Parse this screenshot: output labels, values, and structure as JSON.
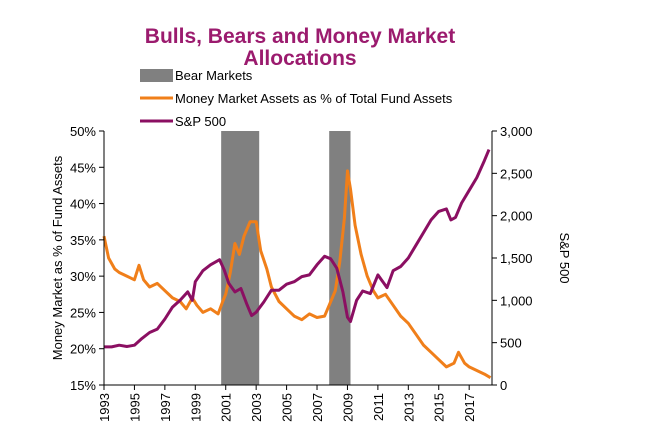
{
  "chart_data": {
    "type": "line",
    "title": "Bulls, Bears and Money Market Allocations",
    "colors": {
      "title": "#9b1b6e",
      "bear": "#808080",
      "money_market": "#f07f1a",
      "sp500": "#8b0f62"
    },
    "legend": {
      "placement": "top",
      "entries": [
        "Bear Markets",
        "Money Market Assets as % of Total Fund Assets",
        "S&P 500"
      ]
    },
    "y_left": {
      "label": "Money Market as % of Fund Assets",
      "range": [
        15,
        50
      ],
      "ticks": [
        "15%",
        "20%",
        "25%",
        "30%",
        "35%",
        "40%",
        "45%",
        "50%"
      ],
      "tick_values": [
        15,
        20,
        25,
        30,
        35,
        40,
        45,
        50
      ]
    },
    "y_right": {
      "label": "S&P 500",
      "range": [
        0,
        3000
      ],
      "ticks": [
        "0",
        "500",
        "1,000",
        "1,500",
        "2,000",
        "2,500",
        "3,000"
      ],
      "tick_values": [
        0,
        500,
        1000,
        1500,
        2000,
        2500,
        3000
      ]
    },
    "x": {
      "range": [
        1993,
        2018.5
      ],
      "ticks": [
        "1993",
        "1995",
        "1997",
        "1999",
        "2001",
        "2003",
        "2005",
        "2007",
        "2009",
        "2011",
        "2013",
        "2015",
        "2017"
      ],
      "tick_values": [
        1993,
        1995,
        1997,
        1999,
        2001,
        2003,
        2005,
        2007,
        2009,
        2011,
        2013,
        2015,
        2017
      ]
    },
    "grid": false,
    "bear_markets": [
      [
        2000.7,
        2003.2
      ],
      [
        2007.8,
        2009.2
      ]
    ],
    "series": [
      {
        "name": "Money Market Assets as % of Total Fund Assets",
        "axis": "left",
        "points": [
          [
            1993.0,
            35.5
          ],
          [
            1993.3,
            32.5
          ],
          [
            1993.7,
            31.0
          ],
          [
            1994.0,
            30.5
          ],
          [
            1994.5,
            30.0
          ],
          [
            1995.0,
            29.5
          ],
          [
            1995.3,
            31.5
          ],
          [
            1995.6,
            29.5
          ],
          [
            1996.0,
            28.5
          ],
          [
            1996.5,
            29.0
          ],
          [
            1997.0,
            28.0
          ],
          [
            1997.5,
            27.0
          ],
          [
            1998.0,
            26.5
          ],
          [
            1998.4,
            25.5
          ],
          [
            1998.8,
            27.0
          ],
          [
            1999.1,
            26.0
          ],
          [
            1999.5,
            25.0
          ],
          [
            2000.0,
            25.5
          ],
          [
            2000.5,
            24.8
          ],
          [
            2000.8,
            26.5
          ],
          [
            2001.0,
            27.5
          ],
          [
            2001.3,
            30.5
          ],
          [
            2001.6,
            34.5
          ],
          [
            2001.9,
            33.0
          ],
          [
            2002.2,
            35.5
          ],
          [
            2002.6,
            37.5
          ],
          [
            2003.0,
            37.5
          ],
          [
            2003.3,
            33.5
          ],
          [
            2003.7,
            31.0
          ],
          [
            2004.0,
            28.5
          ],
          [
            2004.5,
            26.5
          ],
          [
            2005.0,
            25.5
          ],
          [
            2005.5,
            24.5
          ],
          [
            2006.0,
            24.0
          ],
          [
            2006.5,
            24.8
          ],
          [
            2007.0,
            24.3
          ],
          [
            2007.5,
            24.5
          ],
          [
            2007.8,
            26.0
          ],
          [
            2008.2,
            28.0
          ],
          [
            2008.5,
            32.0
          ],
          [
            2008.8,
            38.0
          ],
          [
            2009.0,
            44.5
          ],
          [
            2009.2,
            42.0
          ],
          [
            2009.5,
            37.0
          ],
          [
            2009.9,
            33.0
          ],
          [
            2010.3,
            30.0
          ],
          [
            2010.7,
            28.0
          ],
          [
            2011.0,
            27.0
          ],
          [
            2011.5,
            27.5
          ],
          [
            2012.0,
            26.0
          ],
          [
            2012.5,
            24.5
          ],
          [
            2013.0,
            23.5
          ],
          [
            2013.5,
            22.0
          ],
          [
            2014.0,
            20.5
          ],
          [
            2014.5,
            19.5
          ],
          [
            2015.0,
            18.5
          ],
          [
            2015.5,
            17.5
          ],
          [
            2016.0,
            18.0
          ],
          [
            2016.3,
            19.5
          ],
          [
            2016.7,
            18.0
          ],
          [
            2017.0,
            17.5
          ],
          [
            2017.5,
            17.0
          ],
          [
            2018.0,
            16.5
          ],
          [
            2018.4,
            16.0
          ]
        ]
      },
      {
        "name": "S&P 500",
        "axis": "right",
        "points": [
          [
            1993.0,
            450
          ],
          [
            1993.5,
            450
          ],
          [
            1994.0,
            470
          ],
          [
            1994.5,
            455
          ],
          [
            1995.0,
            470
          ],
          [
            1995.5,
            550
          ],
          [
            1996.0,
            620
          ],
          [
            1996.5,
            660
          ],
          [
            1997.0,
            780
          ],
          [
            1997.5,
            920
          ],
          [
            1998.0,
            1000
          ],
          [
            1998.5,
            1100
          ],
          [
            1998.8,
            1000
          ],
          [
            1999.0,
            1220
          ],
          [
            1999.5,
            1350
          ],
          [
            2000.0,
            1420
          ],
          [
            2000.6,
            1480
          ],
          [
            2000.9,
            1360
          ],
          [
            2001.2,
            1200
          ],
          [
            2001.6,
            1100
          ],
          [
            2002.0,
            1140
          ],
          [
            2002.4,
            950
          ],
          [
            2002.7,
            820
          ],
          [
            2003.0,
            860
          ],
          [
            2003.5,
            980
          ],
          [
            2004.0,
            1120
          ],
          [
            2004.5,
            1120
          ],
          [
            2005.0,
            1190
          ],
          [
            2005.5,
            1220
          ],
          [
            2006.0,
            1280
          ],
          [
            2006.5,
            1300
          ],
          [
            2007.0,
            1420
          ],
          [
            2007.5,
            1520
          ],
          [
            2007.9,
            1490
          ],
          [
            2008.3,
            1380
          ],
          [
            2008.7,
            1100
          ],
          [
            2009.0,
            800
          ],
          [
            2009.2,
            750
          ],
          [
            2009.6,
            1000
          ],
          [
            2010.0,
            1110
          ],
          [
            2010.5,
            1080
          ],
          [
            2011.0,
            1300
          ],
          [
            2011.6,
            1150
          ],
          [
            2012.0,
            1350
          ],
          [
            2012.5,
            1400
          ],
          [
            2013.0,
            1500
          ],
          [
            2013.5,
            1650
          ],
          [
            2014.0,
            1800
          ],
          [
            2014.5,
            1950
          ],
          [
            2015.0,
            2050
          ],
          [
            2015.5,
            2080
          ],
          [
            2015.8,
            1950
          ],
          [
            2016.1,
            1980
          ],
          [
            2016.5,
            2150
          ],
          [
            2017.0,
            2300
          ],
          [
            2017.5,
            2450
          ],
          [
            2018.0,
            2650
          ],
          [
            2018.3,
            2780
          ]
        ]
      }
    ]
  }
}
